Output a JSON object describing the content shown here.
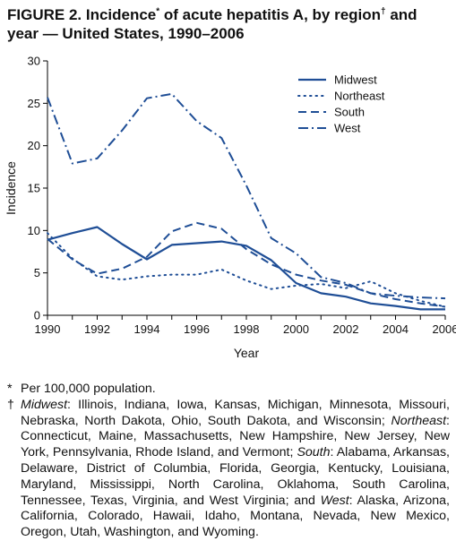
{
  "figure": {
    "title_part1": "FIGURE 2. Incidence",
    "title_star": "*",
    "title_part2": " of acute hepatitis A, by region",
    "title_dagger": "†",
    "title_part3": " and year — United States, 1990–2006"
  },
  "footnotes": {
    "star_mark": "*",
    "star_text": "Per 100,000 population.",
    "dagger_mark": "†",
    "midwest_label": "Midwest",
    "midwest_states": ": Illinois, Indiana, Iowa, Kansas, Michigan, Minnesota, Missouri, Nebraska, North Dakota, Ohio, South Dakota, and Wisconsin; ",
    "northeast_label": "Northeast",
    "northeast_states": ": Connecticut, Maine, Massachusetts, New Hampshire, New Jersey, New York, Pennsylvania, Rhode Island, and Vermont; ",
    "south_label": "South",
    "south_states": ": Alabama, Arkansas, Delaware, District of Columbia, Florida, Georgia, Kentucky, Louisiana, Maryland, Mississippi, North Carolina, Oklahoma, South Carolina, Tennessee, Texas, Virginia, and West Virginia; and ",
    "west_label": "West",
    "west_states": ": Alaska, Arizona, California, Colorado, Hawaii, Idaho, Montana, Nevada, New Mexico, Oregon, Utah, Washington, and Wyoming."
  },
  "chart_data": {
    "type": "line",
    "xlabel": "Year",
    "ylabel": "Incidence",
    "xlim": [
      1990,
      2006
    ],
    "ylim": [
      0,
      30
    ],
    "x_ticks": [
      1990,
      1992,
      1994,
      1996,
      1998,
      2000,
      2002,
      2004,
      2006
    ],
    "y_ticks": [
      0,
      5,
      10,
      15,
      20,
      25,
      30
    ],
    "legend_position": "top-right",
    "grid": false,
    "line_color": "#1f4e96",
    "x": [
      1990,
      1991,
      1992,
      1993,
      1994,
      1995,
      1996,
      1997,
      1998,
      1999,
      2000,
      2001,
      2002,
      2003,
      2004,
      2005,
      2006
    ],
    "series": [
      {
        "name": "Midwest",
        "dash": "solid",
        "values": [
          8.9,
          9.7,
          10.4,
          8.4,
          6.6,
          8.3,
          8.5,
          8.7,
          8.2,
          6.5,
          3.8,
          2.6,
          2.2,
          1.4,
          1.1,
          0.7,
          0.7
        ]
      },
      {
        "name": "Northeast",
        "dash": "dot",
        "values": [
          9.7,
          6.7,
          4.6,
          4.2,
          4.6,
          4.8,
          4.8,
          5.4,
          4.1,
          3.1,
          3.5,
          3.7,
          3.2,
          4.0,
          2.6,
          1.7,
          1.0
        ]
      },
      {
        "name": "South",
        "dash": "dash",
        "values": [
          9.0,
          6.6,
          4.9,
          5.5,
          6.9,
          9.9,
          10.9,
          10.2,
          7.8,
          6.0,
          4.8,
          4.1,
          3.6,
          2.6,
          1.9,
          1.4,
          1.0
        ]
      },
      {
        "name": "West",
        "dash": "dashdot",
        "values": [
          25.7,
          17.9,
          18.5,
          21.8,
          25.6,
          26.1,
          22.9,
          20.9,
          15.3,
          9.1,
          7.3,
          4.5,
          3.8,
          2.6,
          2.3,
          2.1,
          2.0
        ]
      }
    ]
  }
}
